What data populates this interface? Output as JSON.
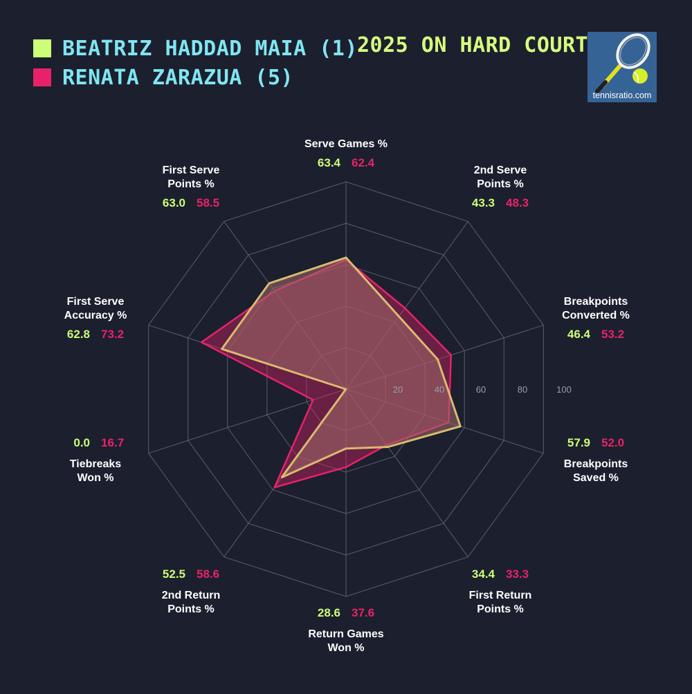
{
  "title": "2025 ON HARD COURTS",
  "logo": {
    "text": "tennisratio.com",
    "icon": "tennis-racket-ball-icon"
  },
  "colors": {
    "background": "#1c1f2e",
    "player1": "#ccff77",
    "player2": "#e8226a",
    "legend_text": "#7fe6f2",
    "title": "#d6ff7e",
    "grid": "#5a5e70",
    "fill": "#a06a68"
  },
  "chart_data": {
    "type": "radar",
    "series": [
      {
        "name": "BEATRIZ HADDAD MAIA (1)",
        "color": "#ccff77",
        "values": [
          63.4,
          43.3,
          46.4,
          57.9,
          34.4,
          28.6,
          52.5,
          0.0,
          62.8,
          63.0
        ]
      },
      {
        "name": "RENATA ZARAZUA (5)",
        "color": "#e8226a",
        "values": [
          62.4,
          48.3,
          53.2,
          52.0,
          33.3,
          37.6,
          58.6,
          16.7,
          73.2,
          58.5
        ]
      }
    ],
    "axes": [
      {
        "label": [
          "Serve Games %"
        ]
      },
      {
        "label": [
          "2nd Serve",
          "Points %"
        ]
      },
      {
        "label": [
          "Breakpoints",
          "Converted %"
        ]
      },
      {
        "label": [
          "Breakpoints",
          "Saved %"
        ]
      },
      {
        "label": [
          "First Return",
          "Points %"
        ]
      },
      {
        "label": [
          "Return Games",
          "Won %"
        ]
      },
      {
        "label": [
          "2nd Return",
          "Points %"
        ]
      },
      {
        "label": [
          "Tiebreaks",
          "Won %"
        ]
      },
      {
        "label": [
          "First Serve",
          "Accuracy %"
        ]
      },
      {
        "label": [
          "First Serve",
          "Points %"
        ]
      }
    ],
    "radial_ticks": [
      "20",
      "40",
      "60",
      "80",
      "100"
    ],
    "range": [
      0,
      100
    ],
    "grid": true
  }
}
